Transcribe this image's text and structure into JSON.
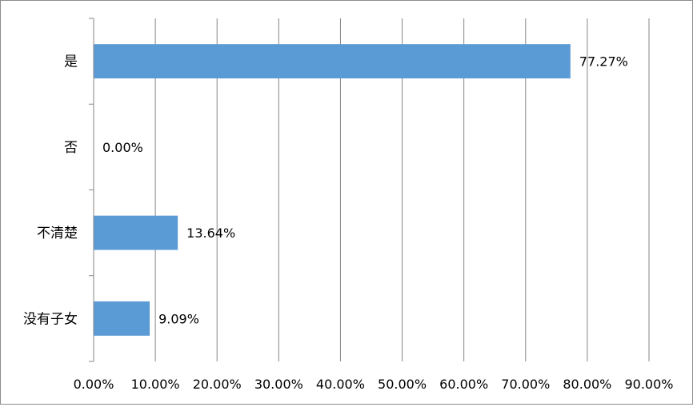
{
  "chart_data": {
    "type": "bar",
    "orientation": "horizontal",
    "categories": [
      "是",
      "否",
      "不清楚",
      "没有子女"
    ],
    "values": [
      77.27,
      0.0,
      13.64,
      9.09
    ],
    "data_labels": [
      "77.27%",
      "0.00%",
      "13.64%",
      "9.09%"
    ],
    "x_ticks": [
      "0.00%",
      "10.00%",
      "20.00%",
      "30.00%",
      "40.00%",
      "50.00%",
      "60.00%",
      "70.00%",
      "80.00%",
      "90.00%"
    ],
    "xlim": [
      0,
      90
    ],
    "xlabel": "",
    "ylabel": "",
    "grid": true,
    "legend": "none",
    "bar_color": "#5b9bd5",
    "grid_color": "#868686",
    "frame_color": "#8c8c8c"
  }
}
